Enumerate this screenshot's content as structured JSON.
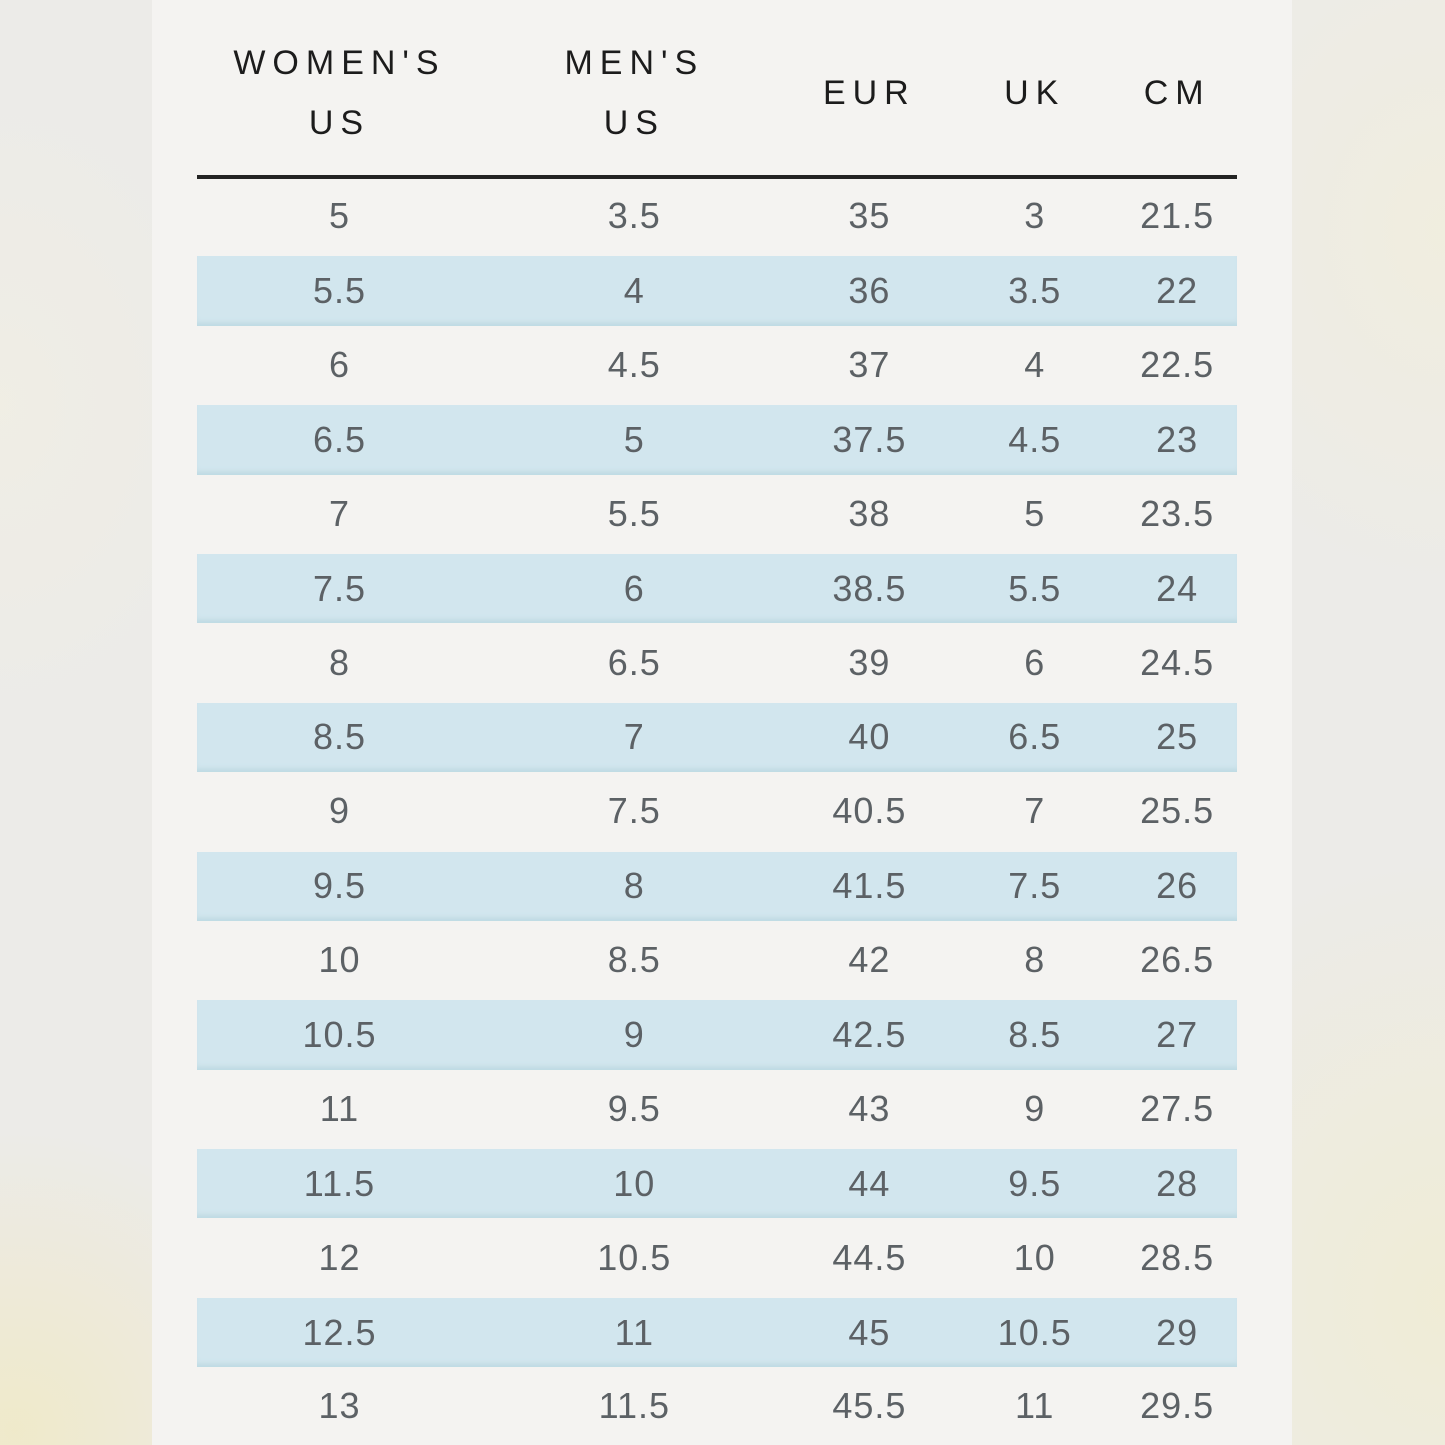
{
  "chart_data": {
    "type": "table",
    "columns": [
      {
        "id": "womens-us",
        "lines": [
          "WOMEN'S",
          "US"
        ]
      },
      {
        "id": "mens-us",
        "lines": [
          "MEN'S",
          "US"
        ]
      },
      {
        "id": "eur",
        "lines": [
          "EUR"
        ]
      },
      {
        "id": "uk",
        "lines": [
          "UK"
        ]
      },
      {
        "id": "cm",
        "lines": [
          "CM"
        ]
      }
    ],
    "rows": [
      [
        "5",
        "3.5",
        "35",
        "3",
        "21.5"
      ],
      [
        "5.5",
        "4",
        "36",
        "3.5",
        "22"
      ],
      [
        "6",
        "4.5",
        "37",
        "4",
        "22.5"
      ],
      [
        "6.5",
        "5",
        "37.5",
        "4.5",
        "23"
      ],
      [
        "7",
        "5.5",
        "38",
        "5",
        "23.5"
      ],
      [
        "7.5",
        "6",
        "38.5",
        "5.5",
        "24"
      ],
      [
        "8",
        "6.5",
        "39",
        "6",
        "24.5"
      ],
      [
        "8.5",
        "7",
        "40",
        "6.5",
        "25"
      ],
      [
        "9",
        "7.5",
        "40.5",
        "7",
        "25.5"
      ],
      [
        "9.5",
        "8",
        "41.5",
        "7.5",
        "26"
      ],
      [
        "10",
        "8.5",
        "42",
        "8",
        "26.5"
      ],
      [
        "10.5",
        "9",
        "42.5",
        "8.5",
        "27"
      ],
      [
        "11",
        "9.5",
        "43",
        "9",
        "27.5"
      ],
      [
        "11.5",
        "10",
        "44",
        "9.5",
        "28"
      ],
      [
        "12",
        "10.5",
        "44.5",
        "10",
        "28.5"
      ],
      [
        "12.5",
        "11",
        "45",
        "10.5",
        "29"
      ],
      [
        "13",
        "11.5",
        "45.5",
        "11",
        "29.5"
      ]
    ],
    "highlighted_row_indices": [
      1,
      3,
      5,
      7,
      9,
      11,
      13,
      15
    ],
    "layout": {
      "grid": "off",
      "legend": "none",
      "header_rule": "on"
    }
  },
  "colors": {
    "outer_bg": "#ecebe8",
    "panel_bg": "#f4f3f1",
    "row_highlight": "#d2e6ee",
    "row_highlight_edge": "#bcd9e2",
    "header_text": "#1c1c1c",
    "cell_text": "#5c6165",
    "divider": "#232323"
  }
}
